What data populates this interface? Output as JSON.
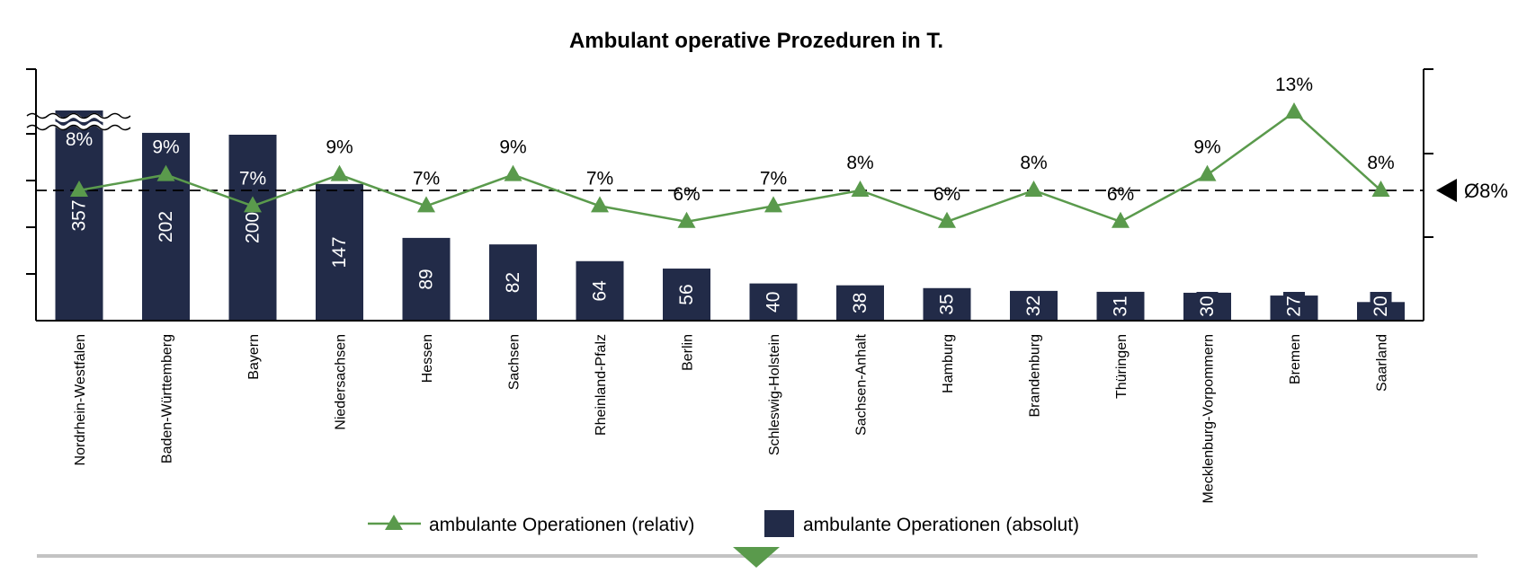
{
  "chart_data": {
    "type": "bar+line",
    "title": "Ambulant operative Prozeduren in T.",
    "categories": [
      "Nordrhein-Westfalen",
      "Baden-Württemberg",
      "Bayern",
      "Niedersachsen",
      "Hessen",
      "Sachsen",
      "Rheinland-Pfalz",
      "Berlin",
      "Schleswig-Holstein",
      "Sachsen-Anhalt",
      "Hamburg",
      "Brandenburg",
      "Thüringen",
      "Mecklenburg-Vorpommern",
      "Bremen",
      "Saarland"
    ],
    "series": [
      {
        "name": "ambulante Operationen (absolut)",
        "type": "bar",
        "axis": "left",
        "color": "#222b48",
        "values": [
          357,
          202,
          200,
          147,
          89,
          82,
          64,
          56,
          40,
          38,
          35,
          32,
          31,
          30,
          27,
          20
        ],
        "value_labels": [
          "357",
          "202",
          "200",
          "147",
          "89",
          "82",
          "64",
          "56",
          "40",
          "38",
          "35",
          "32",
          "31",
          "30",
          "27",
          "20"
        ]
      },
      {
        "name": "ambulante Operationen (relativ)",
        "type": "line",
        "axis": "right",
        "marker": "triangle",
        "color": "#5a9a4c",
        "values": [
          8,
          9,
          7,
          9,
          7,
          9,
          7,
          6,
          7,
          8,
          6,
          8,
          6,
          9,
          13,
          8
        ],
        "value_labels": [
          "8%",
          "9%",
          "7%",
          "9%",
          "7%",
          "9%",
          "7%",
          "6%",
          "7%",
          "8%",
          "6%",
          "8%",
          "6%",
          "9%",
          "13%",
          "8%"
        ]
      }
    ],
    "average": {
      "value": 8,
      "label": "Ø8%"
    },
    "axis_break": {
      "category": "Nordrhein-Westfalen"
    },
    "left_axis_tick_labels": false,
    "right_axis_tick_labels": false,
    "grid": false,
    "legend_placement": "bottom"
  },
  "legend": {
    "line_label": "ambulante Operationen (relativ)",
    "bar_label": "ambulante Operationen (absolut)"
  },
  "accent_color": "#5a9a4c"
}
